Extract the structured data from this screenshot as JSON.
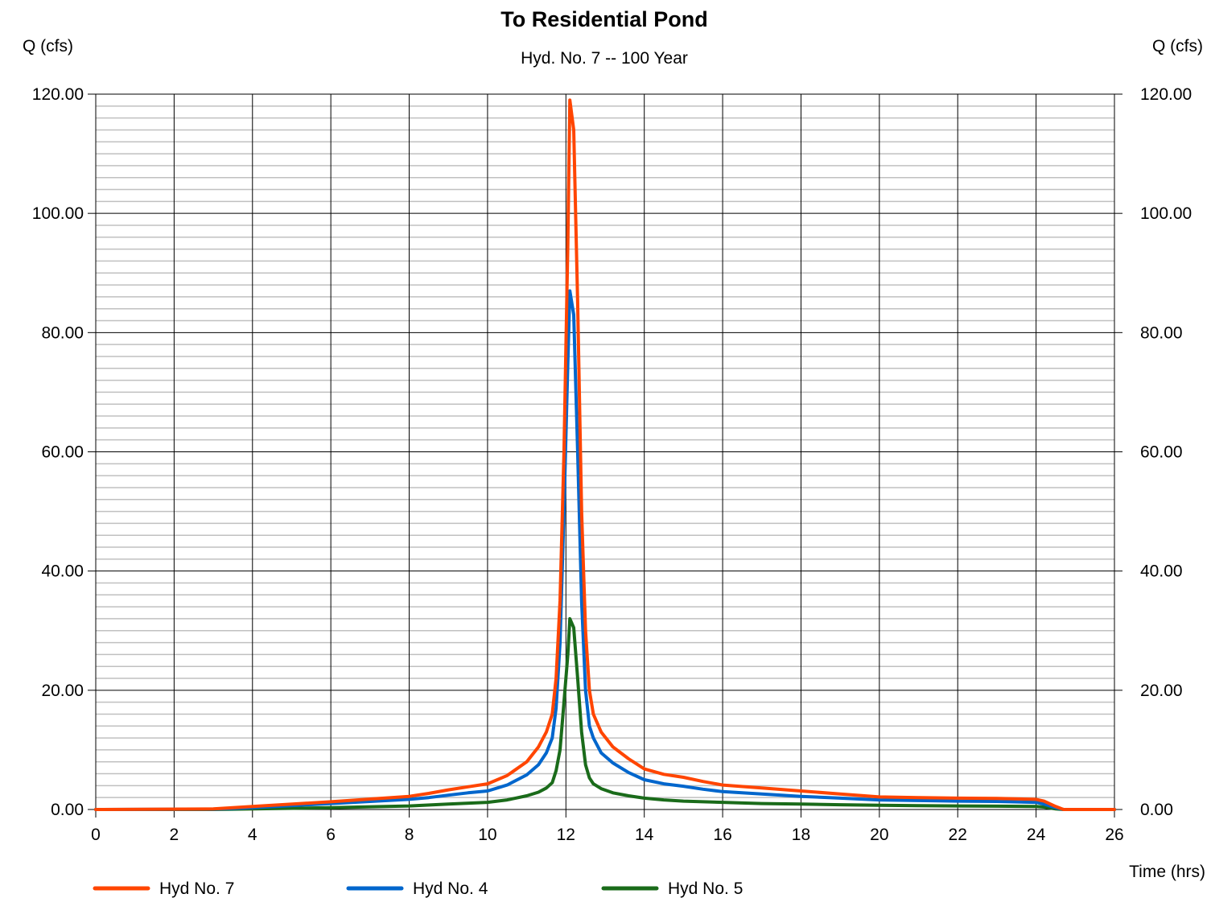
{
  "chart_data": {
    "type": "line",
    "title": "To Residential Pond",
    "subtitle": "Hyd. No. 7 -- 100 Year",
    "ylabel_left": "Q (cfs)",
    "ylabel_right": "Q (cfs)",
    "xlabel": "Time (hrs)",
    "xlim": [
      0,
      26
    ],
    "ylim": [
      0,
      120
    ],
    "x_ticks": [
      "0",
      "2",
      "4",
      "6",
      "8",
      "10",
      "12",
      "14",
      "16",
      "18",
      "20",
      "22",
      "24",
      "26"
    ],
    "y_ticks": [
      "0.00",
      "20.00",
      "40.00",
      "60.00",
      "80.00",
      "100.00",
      "120.00"
    ],
    "grid": true,
    "legend_position": "bottom",
    "series": [
      {
        "name": "Hyd No. 7",
        "color": "#ff4500",
        "points": [
          [
            0,
            0
          ],
          [
            3,
            0.1
          ],
          [
            4,
            0.5
          ],
          [
            6,
            1.3
          ],
          [
            8,
            2.2
          ],
          [
            8.5,
            2.7
          ],
          [
            9,
            3.3
          ],
          [
            9.5,
            3.8
          ],
          [
            10,
            4.3
          ],
          [
            10.5,
            5.7
          ],
          [
            11,
            8
          ],
          [
            11.3,
            10.5
          ],
          [
            11.5,
            13
          ],
          [
            11.65,
            16
          ],
          [
            11.75,
            22
          ],
          [
            11.85,
            35
          ],
          [
            11.95,
            60
          ],
          [
            12.05,
            95
          ],
          [
            12.1,
            119
          ],
          [
            12.2,
            114
          ],
          [
            12.3,
            85
          ],
          [
            12.4,
            50
          ],
          [
            12.5,
            30
          ],
          [
            12.6,
            20
          ],
          [
            12.7,
            16
          ],
          [
            12.9,
            13
          ],
          [
            13.2,
            10.5
          ],
          [
            13.6,
            8.5
          ],
          [
            14,
            6.8
          ],
          [
            14.5,
            5.9
          ],
          [
            15,
            5.4
          ],
          [
            15.5,
            4.7
          ],
          [
            16,
            4.1
          ],
          [
            17,
            3.6
          ],
          [
            18,
            3.1
          ],
          [
            19,
            2.6
          ],
          [
            20,
            2.1
          ],
          [
            21,
            2.0
          ],
          [
            22,
            1.9
          ],
          [
            23,
            1.85
          ],
          [
            24,
            1.7
          ],
          [
            24.2,
            1.4
          ],
          [
            24.5,
            0.5
          ],
          [
            24.7,
            0
          ],
          [
            26,
            0
          ]
        ]
      },
      {
        "name": "Hyd No. 4",
        "color": "#0066cc",
        "points": [
          [
            0,
            0
          ],
          [
            3,
            0.05
          ],
          [
            4,
            0.3
          ],
          [
            6,
            1.0
          ],
          [
            8,
            1.7
          ],
          [
            8.5,
            2.0
          ],
          [
            9,
            2.4
          ],
          [
            9.5,
            2.8
          ],
          [
            10,
            3.1
          ],
          [
            10.5,
            4.1
          ],
          [
            11,
            5.8
          ],
          [
            11.3,
            7.5
          ],
          [
            11.5,
            9.5
          ],
          [
            11.65,
            12
          ],
          [
            11.75,
            17
          ],
          [
            11.85,
            28
          ],
          [
            11.95,
            50
          ],
          [
            12.05,
            75
          ],
          [
            12.1,
            87
          ],
          [
            12.2,
            83
          ],
          [
            12.3,
            60
          ],
          [
            12.4,
            35
          ],
          [
            12.5,
            20
          ],
          [
            12.6,
            14
          ],
          [
            12.7,
            12
          ],
          [
            12.9,
            9.5
          ],
          [
            13.2,
            7.8
          ],
          [
            13.6,
            6.2
          ],
          [
            14,
            5.0
          ],
          [
            14.5,
            4.3
          ],
          [
            15,
            3.9
          ],
          [
            15.5,
            3.4
          ],
          [
            16,
            3.0
          ],
          [
            17,
            2.6
          ],
          [
            18,
            2.2
          ],
          [
            19,
            1.9
          ],
          [
            20,
            1.6
          ],
          [
            21,
            1.5
          ],
          [
            22,
            1.4
          ],
          [
            23,
            1.35
          ],
          [
            24,
            1.2
          ],
          [
            24.2,
            0.9
          ],
          [
            24.5,
            0.3
          ],
          [
            24.7,
            0
          ],
          [
            26,
            0
          ]
        ]
      },
      {
        "name": "Hyd No. 5",
        "color": "#1a6b1a",
        "points": [
          [
            0,
            0
          ],
          [
            3,
            0
          ],
          [
            4,
            0.1
          ],
          [
            6,
            0.3
          ],
          [
            8,
            0.6
          ],
          [
            9,
            0.9
          ],
          [
            10,
            1.2
          ],
          [
            10.5,
            1.6
          ],
          [
            11,
            2.3
          ],
          [
            11.3,
            2.9
          ],
          [
            11.5,
            3.6
          ],
          [
            11.65,
            4.5
          ],
          [
            11.75,
            6.5
          ],
          [
            11.85,
            10
          ],
          [
            11.95,
            18
          ],
          [
            12.05,
            26
          ],
          [
            12.1,
            32
          ],
          [
            12.2,
            30.5
          ],
          [
            12.3,
            22
          ],
          [
            12.4,
            13
          ],
          [
            12.5,
            7.5
          ],
          [
            12.6,
            5.3
          ],
          [
            12.7,
            4.3
          ],
          [
            12.9,
            3.5
          ],
          [
            13.2,
            2.8
          ],
          [
            13.6,
            2.3
          ],
          [
            14,
            1.9
          ],
          [
            14.5,
            1.6
          ],
          [
            15,
            1.4
          ],
          [
            15.5,
            1.3
          ],
          [
            16,
            1.2
          ],
          [
            17,
            1.0
          ],
          [
            18,
            0.9
          ],
          [
            19,
            0.8
          ],
          [
            20,
            0.7
          ],
          [
            21,
            0.65
          ],
          [
            22,
            0.6
          ],
          [
            23,
            0.55
          ],
          [
            24,
            0.5
          ],
          [
            24.2,
            0.4
          ],
          [
            24.5,
            0.1
          ],
          [
            24.7,
            0
          ],
          [
            26,
            0
          ]
        ]
      }
    ]
  }
}
